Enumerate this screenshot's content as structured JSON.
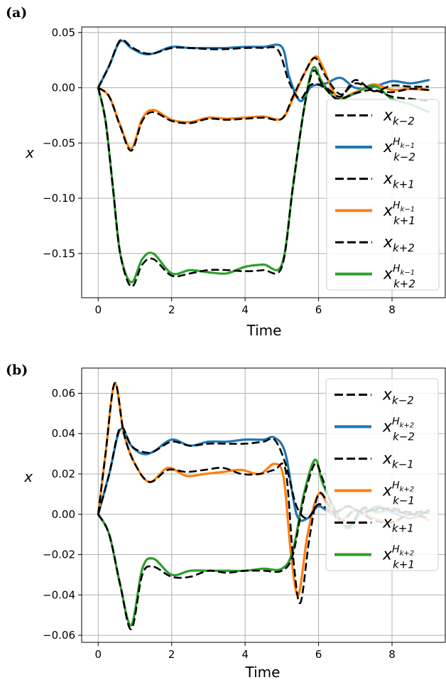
{
  "chart_data": [
    {
      "type": "line",
      "panel": "(a)",
      "xlabel": "Time",
      "ylabel": "x",
      "xlim": [
        -0.45,
        9.45
      ],
      "ylim": [
        -0.19,
        0.055
      ],
      "xticks": [
        0,
        2,
        4,
        6,
        8
      ],
      "yticks": [
        0.05,
        0.0,
        -0.05,
        -0.1,
        -0.15
      ],
      "ytick_labels": [
        "0.05",
        "0.00",
        "−0.05",
        "−0.10",
        "−0.15"
      ],
      "grid": true,
      "legend_position": "right",
      "series": [
        {
          "name": "x_{k-2}",
          "color": "#000000",
          "style": "dashed",
          "x": [
            0,
            0.3,
            0.6,
            0.9,
            1.2,
            1.5,
            2,
            2.5,
            3,
            3.5,
            4,
            4.5,
            4.9,
            5.2,
            5.5,
            5.8,
            6.2,
            6.6,
            7,
            7.5,
            8,
            8.5,
            9
          ],
          "y": [
            0,
            0.02,
            0.043,
            0.037,
            0.032,
            0.031,
            0.036,
            0.036,
            0.035,
            0.035,
            0.036,
            0.036,
            0.034,
            0.005,
            -0.01,
            0.003,
            0.0,
            -0.008,
            0.007,
            -0.003,
            0.002,
            0.001,
            0.001
          ]
        },
        {
          "name": "x_{k-2}^{H_{k-1}}",
          "color": "#1f77b4",
          "style": "solid",
          "x": [
            0,
            0.3,
            0.6,
            0.9,
            1.2,
            1.5,
            2,
            2.5,
            3,
            3.5,
            4,
            4.5,
            5,
            5.2,
            5.5,
            5.8,
            6.2,
            6.6,
            7,
            7.5,
            8,
            8.5,
            9
          ],
          "y": [
            0,
            0.02,
            0.042,
            0.036,
            0.031,
            0.031,
            0.037,
            0.036,
            0.036,
            0.036,
            0.037,
            0.037,
            0.037,
            0.01,
            -0.012,
            0.001,
            0.004,
            0.009,
            0.0,
            0.001,
            0.006,
            0.004,
            0.007
          ]
        },
        {
          "name": "x_{k+1}",
          "color": "#000000",
          "style": "dashed",
          "x": [
            0,
            0.3,
            0.6,
            0.9,
            1.2,
            1.5,
            2,
            2.5,
            3,
            3.5,
            4,
            4.5,
            5,
            5.3,
            5.6,
            5.9,
            6.2,
            6.6,
            7,
            7.5,
            8,
            8.5,
            9
          ],
          "y": [
            0,
            -0.008,
            -0.035,
            -0.057,
            -0.03,
            -0.022,
            -0.03,
            -0.032,
            -0.028,
            -0.029,
            -0.028,
            -0.027,
            -0.028,
            -0.008,
            0.012,
            0.027,
            0.01,
            -0.006,
            0.004,
            -0.002,
            -0.004,
            -0.001,
            -0.002
          ]
        },
        {
          "name": "x_{k+1}^{H_{k-1}}",
          "color": "#ff7f0e",
          "style": "solid",
          "x": [
            0,
            0.3,
            0.6,
            0.9,
            1.2,
            1.5,
            2,
            2.5,
            3,
            3.5,
            4,
            4.5,
            5,
            5.3,
            5.6,
            5.9,
            6.1,
            6.5,
            7,
            7.5,
            8,
            8.5,
            9
          ],
          "y": [
            0,
            -0.008,
            -0.034,
            -0.055,
            -0.028,
            -0.02,
            -0.029,
            -0.031,
            -0.027,
            -0.028,
            -0.027,
            -0.026,
            -0.028,
            -0.01,
            0.012,
            0.028,
            0.02,
            -0.008,
            -0.004,
            0.003,
            -0.002,
            -0.001,
            -0.002
          ]
        },
        {
          "name": "x_{k+2}",
          "color": "#000000",
          "style": "dashed",
          "x": [
            0,
            0.2,
            0.4,
            0.6,
            0.9,
            1.2,
            1.5,
            2,
            2.5,
            3,
            3.5,
            4,
            4.5,
            5,
            5.3,
            5.6,
            5.85,
            6.1,
            6.5,
            7,
            7.5,
            8,
            8.5,
            9
          ],
          "y": [
            0,
            -0.03,
            -0.09,
            -0.15,
            -0.18,
            -0.16,
            -0.155,
            -0.17,
            -0.168,
            -0.165,
            -0.165,
            -0.166,
            -0.165,
            -0.162,
            -0.09,
            -0.02,
            0.015,
            0.003,
            -0.01,
            -0.005,
            -0.002,
            -0.008,
            -0.01,
            -0.012
          ]
        },
        {
          "name": "x_{k+2}^{H_{k-1}}",
          "color": "#2ca02c",
          "style": "solid",
          "x": [
            0,
            0.2,
            0.4,
            0.6,
            0.9,
            1.2,
            1.5,
            2,
            2.5,
            3,
            3.5,
            4,
            4.5,
            5,
            5.3,
            5.6,
            5.85,
            6.1,
            6.5,
            7,
            7.5,
            8,
            8.5,
            9
          ],
          "y": [
            0,
            -0.03,
            -0.09,
            -0.15,
            -0.176,
            -0.155,
            -0.15,
            -0.168,
            -0.165,
            -0.167,
            -0.168,
            -0.162,
            -0.16,
            -0.16,
            -0.09,
            -0.02,
            0.018,
            0.005,
            -0.01,
            -0.005,
            0.002,
            -0.01,
            -0.015,
            -0.022
          ]
        }
      ]
    },
    {
      "type": "line",
      "panel": "(b)",
      "xlabel": "Time",
      "ylabel": "x",
      "xlim": [
        -0.45,
        9.45
      ],
      "ylim": [
        -0.0635,
        0.0725
      ],
      "xticks": [
        0,
        2,
        4,
        6,
        8
      ],
      "yticks": [
        0.06,
        0.04,
        0.02,
        0.0,
        -0.02,
        -0.04,
        -0.06
      ],
      "ytick_labels": [
        "0.06",
        "0.04",
        "0.02",
        "0.00",
        "−0.02",
        "−0.04",
        "−0.06"
      ],
      "grid": true,
      "legend_position": "right",
      "series": [
        {
          "name": "x_{k-2}",
          "color": "#000000",
          "style": "dashed",
          "x": [
            0,
            0.3,
            0.6,
            0.9,
            1.2,
            1.5,
            2,
            2.5,
            3,
            3.5,
            4,
            4.5,
            4.8,
            5.1,
            5.4,
            5.7,
            6,
            6.4,
            6.8,
            7.2,
            7.6,
            8,
            8.5,
            9
          ],
          "y": [
            0,
            0.02,
            0.043,
            0.034,
            0.031,
            0.031,
            0.036,
            0.034,
            0.035,
            0.035,
            0.035,
            0.036,
            0.037,
            0.025,
            0.004,
            -0.002,
            0.005,
            0.001,
            0.004,
            0.001,
            0.003,
            0.002,
            0.0,
            0.001
          ]
        },
        {
          "name": "x_{k-2}^{H_{k+2}}",
          "color": "#1f77b4",
          "style": "solid",
          "x": [
            0,
            0.3,
            0.6,
            0.9,
            1.2,
            1.5,
            2,
            2.5,
            3,
            3.5,
            4,
            4.5,
            4.8,
            5.1,
            5.4,
            5.7,
            6,
            6.4,
            6.8,
            7.2,
            7.6,
            8,
            8.5,
            9
          ],
          "y": [
            0,
            0.02,
            0.042,
            0.034,
            0.03,
            0.031,
            0.037,
            0.034,
            0.036,
            0.036,
            0.037,
            0.037,
            0.038,
            0.03,
            0.0,
            -0.002,
            0.004,
            0.0,
            0.004,
            0.0,
            0.004,
            0.001,
            -0.002,
            0.002
          ]
        },
        {
          "name": "x_{k-1}",
          "color": "#000000",
          "style": "dashed",
          "x": [
            0,
            0.2,
            0.45,
            0.7,
            1,
            1.4,
            1.9,
            2.4,
            2.9,
            3.4,
            3.9,
            4.4,
            4.8,
            5.1,
            5.3,
            5.5,
            5.75,
            6,
            6.3,
            6.6,
            7,
            7.5,
            8,
            8.5,
            9
          ],
          "y": [
            0,
            0.03,
            0.065,
            0.04,
            0.025,
            0.016,
            0.022,
            0.021,
            0.022,
            0.023,
            0.02,
            0.02,
            0.022,
            0.022,
            -0.02,
            -0.044,
            -0.012,
            0.01,
            0.004,
            -0.004,
            0.002,
            -0.003,
            -0.004,
            0.0,
            -0.002
          ]
        },
        {
          "name": "x_{k-1}^{H_{k+2}}",
          "color": "#ff7f0e",
          "style": "solid",
          "x": [
            0,
            0.2,
            0.45,
            0.7,
            1,
            1.4,
            1.9,
            2.4,
            2.9,
            3.4,
            3.9,
            4.4,
            4.8,
            5.05,
            5.25,
            5.45,
            5.7,
            6,
            6.3,
            6.6,
            7,
            7.5,
            8,
            8.5,
            9
          ],
          "y": [
            0,
            0.03,
            0.065,
            0.04,
            0.025,
            0.016,
            0.023,
            0.019,
            0.02,
            0.021,
            0.022,
            0.02,
            0.025,
            0.018,
            -0.02,
            -0.04,
            -0.01,
            0.01,
            0.003,
            -0.003,
            0.002,
            -0.002,
            -0.004,
            0.0,
            -0.003
          ]
        },
        {
          "name": "x_{k+1}",
          "color": "#000000",
          "style": "dashed",
          "x": [
            0,
            0.3,
            0.6,
            0.9,
            1.2,
            1.5,
            2,
            2.5,
            3,
            3.5,
            4,
            4.5,
            5,
            5.3,
            5.6,
            5.9,
            6.1,
            6.4,
            6.8,
            7.2,
            7.6,
            8,
            8.5,
            9
          ],
          "y": [
            0,
            -0.01,
            -0.035,
            -0.057,
            -0.03,
            -0.026,
            -0.031,
            -0.031,
            -0.028,
            -0.029,
            -0.028,
            -0.028,
            -0.028,
            -0.02,
            0.008,
            0.025,
            0.018,
            0.003,
            -0.006,
            0.003,
            0.002,
            0.003,
            0.001,
            0.002
          ]
        },
        {
          "name": "x_{k+1}^{H_{k+2}}",
          "color": "#2ca02c",
          "style": "solid",
          "x": [
            0,
            0.3,
            0.6,
            0.9,
            1.2,
            1.5,
            2,
            2.5,
            3,
            3.5,
            4,
            4.5,
            5,
            5.3,
            5.6,
            5.9,
            6.1,
            6.4,
            6.8,
            7.2,
            7.6,
            8,
            8.5,
            9
          ],
          "y": [
            0,
            -0.01,
            -0.035,
            -0.055,
            -0.027,
            -0.022,
            -0.03,
            -0.028,
            -0.028,
            -0.028,
            -0.028,
            -0.027,
            -0.027,
            -0.018,
            0.01,
            0.027,
            0.016,
            0.004,
            -0.007,
            0.002,
            0.001,
            0.002,
            0.0,
            0.001
          ]
        }
      ]
    }
  ]
}
